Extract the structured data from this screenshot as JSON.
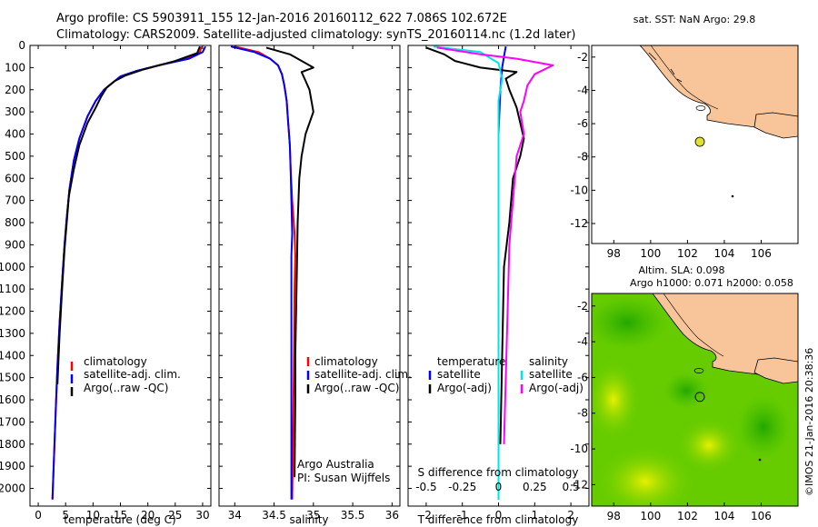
{
  "header": {
    "line1": "Argo profile: CS 5903911_155 12-Jan-2016 20160112_622 7.086S 102.672E",
    "line2": "Climatology: CARS2009. Satellite-adjusted climatology: synTS_20160114.nc (1.2d later)"
  },
  "credit": "©IMOS 21-Jan-2016 20:38:36",
  "colors": {
    "climatology": "#ff0000",
    "satellite": "#0000ff",
    "argo": "#000000",
    "sat_salinity": "#00e5e5",
    "argo_salinity": "#ff00ff",
    "land": "#f8c49a",
    "argo_marker": "#e0e030"
  },
  "chart_data": [
    {
      "type": "line",
      "name": "temperature_profile",
      "xlabel": "temperature (deg C)",
      "ylabel": "",
      "xlim": [
        -1.5,
        31.5
      ],
      "ylim": [
        2080,
        0
      ],
      "xticks": [
        0,
        5,
        10,
        15,
        20,
        25,
        30
      ],
      "yticks": [
        0,
        100,
        200,
        300,
        400,
        500,
        600,
        700,
        800,
        900,
        1000,
        1100,
        1200,
        1300,
        1400,
        1500,
        1600,
        1700,
        1800,
        1900,
        2000
      ],
      "legend": {
        "position": "lower-center",
        "entries": [
          "climatology",
          "satellite-adj. clim.",
          "Argo(..raw -QC)"
        ]
      },
      "series": [
        {
          "name": "climatology",
          "color": "#ff0000",
          "x": [
            29.8,
            29.5,
            27,
            22,
            18,
            15,
            13.5,
            12,
            10.5,
            9,
            7.5,
            6.5,
            5.7,
            5.2,
            4.8,
            4.4,
            3.9,
            3.5,
            3.2,
            2.9,
            2.6
          ],
          "y": [
            5,
            30,
            60,
            90,
            115,
            140,
            170,
            200,
            250,
            320,
            420,
            520,
            650,
            780,
            900,
            1050,
            1250,
            1450,
            1650,
            1850,
            2050
          ]
        },
        {
          "name": "satellite-adj. clim.",
          "color": "#0000ff",
          "x": [
            30.5,
            30,
            27.5,
            22,
            18,
            15,
            13.5,
            12,
            10.5,
            9,
            7.5,
            6.5,
            5.7,
            5.2,
            4.8,
            4.4,
            3.9,
            3.5,
            3.2,
            2.9,
            2.6
          ],
          "y": [
            5,
            30,
            60,
            90,
            115,
            140,
            170,
            200,
            250,
            320,
            420,
            520,
            650,
            780,
            900,
            1050,
            1250,
            1450,
            1650,
            1850,
            2050
          ]
        },
        {
          "name": "Argo(..raw -QC)",
          "color": "#000000",
          "x": [
            29.5,
            29,
            25,
            19,
            16,
            14,
            12.5,
            11.5,
            10.5,
            9,
            7.5,
            6.5,
            5.6,
            5.2,
            4.8,
            4.4,
            3.9,
            3.5
          ],
          "y": [
            5,
            35,
            70,
            110,
            135,
            160,
            190,
            230,
            280,
            350,
            450,
            560,
            680,
            800,
            920,
            1080,
            1300,
            1530
          ]
        }
      ]
    },
    {
      "type": "line",
      "name": "salinity_profile",
      "xlabel": "salinity",
      "ylabel": "",
      "xlim": [
        33.8,
        36.1
      ],
      "ylim": [
        2080,
        0
      ],
      "xticks": [
        34,
        34.5,
        35,
        35.5,
        36
      ],
      "legend": {
        "position": "lower-right",
        "entries": [
          "climatology",
          "satellite-adj. clim.",
          "Argo(..raw -QC)"
        ]
      },
      "annotation": [
        "Argo Australia",
        "PI: Susan Wijffels"
      ],
      "series": [
        {
          "name": "climatology",
          "color": "#ff0000",
          "x": [
            34.0,
            34.3,
            34.45,
            34.55,
            34.6,
            34.63,
            34.66,
            34.68,
            34.7,
            34.71,
            34.73,
            34.76,
            34.77,
            34.76,
            34.75,
            34.73
          ],
          "y": [
            5,
            30,
            60,
            90,
            130,
            180,
            250,
            350,
            450,
            550,
            700,
            850,
            950,
            1100,
            1500,
            2050
          ]
        },
        {
          "name": "satellite-adj. clim.",
          "color": "#0000ff",
          "x": [
            33.95,
            34.25,
            34.45,
            34.55,
            34.6,
            34.63,
            34.66,
            34.68,
            34.7,
            34.71,
            34.72,
            34.73,
            34.72,
            34.72,
            34.72,
            34.72
          ],
          "y": [
            5,
            30,
            60,
            90,
            130,
            180,
            250,
            350,
            450,
            550,
            700,
            850,
            950,
            1100,
            1500,
            2050
          ]
        },
        {
          "name": "Argo(..raw -QC)",
          "color": "#000000",
          "x": [
            34.4,
            34.7,
            34.9,
            35.0,
            34.85,
            34.9,
            34.95,
            35.0,
            34.9,
            34.85,
            34.82,
            34.8,
            34.79,
            34.78,
            34.77,
            34.77,
            34.76
          ],
          "y": [
            10,
            40,
            80,
            100,
            120,
            160,
            200,
            300,
            400,
            500,
            600,
            800,
            1000,
            1200,
            1400,
            1600,
            1950
          ]
        }
      ]
    },
    {
      "type": "line",
      "name": "difference_profile",
      "xlabel": "T difference from climatology",
      "x2label": "S difference from climatology",
      "xlim": [
        -2.5,
        2.5
      ],
      "ylim": [
        2080,
        0
      ],
      "xticks": [
        -2,
        -1,
        0,
        1,
        2
      ],
      "x2ticks": [
        "-0.5",
        "-0.25",
        "0",
        "0.25",
        "0.5"
      ],
      "legend": {
        "position": "lower",
        "groups": [
          {
            "title": "temperature",
            "entries": [
              "satellite",
              "Argo(-adj)"
            ]
          },
          {
            "title": "salinity",
            "entries": [
              "satellite",
              "Argo(-adj)"
            ]
          }
        ]
      },
      "series": [
        {
          "name": "temperature satellite",
          "color": "#0000ff",
          "x": [
            0.2,
            0.15,
            0.1,
            0.05,
            0.0,
            0.0,
            0.0,
            0.0
          ],
          "y": [
            5,
            50,
            100,
            200,
            400,
            800,
            1400,
            2050
          ]
        },
        {
          "name": "temperature Argo(-adj)",
          "color": "#000000",
          "x": [
            -2.0,
            -1.5,
            -1.2,
            -0.5,
            0.5,
            0.2,
            0.3,
            0.5,
            0.6,
            0.7,
            0.6,
            0.4,
            0.3,
            0.15,
            0.1,
            0.05
          ],
          "y": [
            10,
            40,
            70,
            100,
            120,
            150,
            200,
            280,
            350,
            420,
            500,
            600,
            800,
            1000,
            1400,
            1800
          ]
        },
        {
          "name": "salinity satellite",
          "color": "#00e5e5",
          "x": [
            -1.8,
            -0.5,
            0.0,
            0.1,
            0.0,
            0.0,
            0.0,
            0.0
          ],
          "y": [
            5,
            30,
            80,
            150,
            250,
            500,
            1000,
            2050
          ]
        },
        {
          "name": "salinity Argo(-adj)",
          "color": "#ff00ff",
          "x": [
            -1.7,
            -0.5,
            0.5,
            1.5,
            1.0,
            0.8,
            0.7,
            0.6,
            0.7,
            0.5,
            0.4,
            0.3,
            0.25,
            0.2,
            0.15
          ],
          "y": [
            10,
            40,
            60,
            90,
            130,
            180,
            250,
            300,
            400,
            500,
            700,
            900,
            1200,
            1500,
            1800
          ]
        }
      ]
    },
    {
      "type": "scatter",
      "name": "sst_map",
      "title": "sat. SST: NaN Argo: 29.8",
      "xlim": [
        96.8,
        108
      ],
      "ylim": [
        -13.2,
        -1.3
      ],
      "xticks": [
        98,
        100,
        102,
        104,
        106
      ],
      "yticks": [
        -2,
        -4,
        -6,
        -8,
        -10,
        -12
      ],
      "points": [
        {
          "lon": 102.672,
          "lat": -7.086,
          "label": "Argo"
        }
      ]
    },
    {
      "type": "heatmap",
      "name": "sla_map",
      "title": [
        "Altim. SLA: 0.098",
        "Argo h1000: 0.071 h2000: 0.058"
      ],
      "xlim": [
        96.8,
        108
      ],
      "ylim": [
        -13.2,
        -1.3
      ],
      "xticks": [
        98,
        100,
        102,
        104,
        106
      ],
      "yticks": [
        -2,
        -4,
        -6,
        -8,
        -10,
        -12
      ],
      "points": [
        {
          "lon": 102.672,
          "lat": -7.086,
          "label": "Argo"
        }
      ]
    }
  ]
}
